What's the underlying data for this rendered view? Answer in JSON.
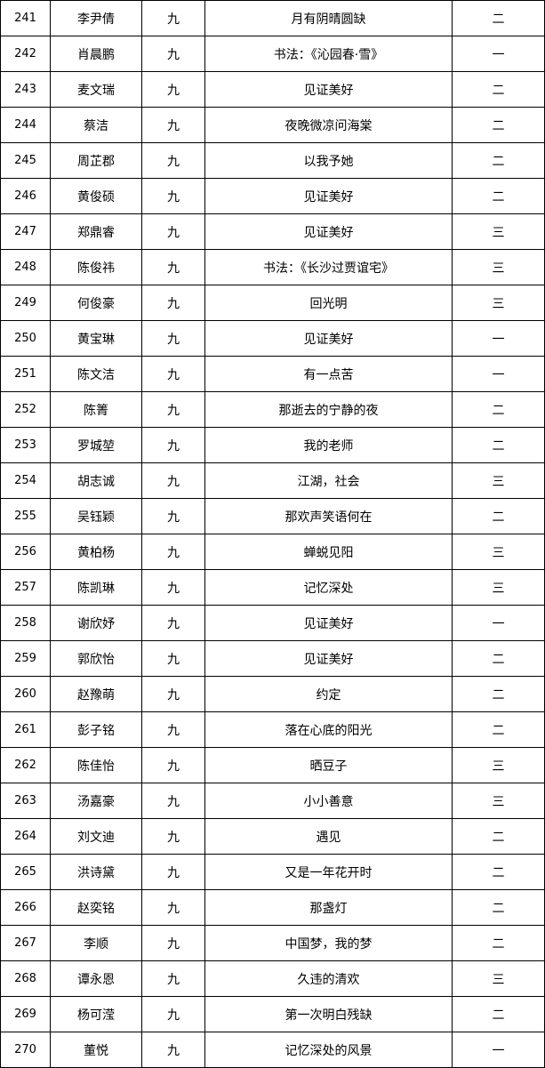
{
  "table": {
    "rows": [
      {
        "no": "241",
        "name": "李尹倩",
        "grade": "九",
        "title": "月有阴晴圆缺",
        "award": "二"
      },
      {
        "no": "242",
        "name": "肖晨鹏",
        "grade": "九",
        "title": "书法：《沁园春·雪》",
        "award": "一"
      },
      {
        "no": "243",
        "name": "麦文瑞",
        "grade": "九",
        "title": "见证美好",
        "award": "二"
      },
      {
        "no": "244",
        "name": "蔡洁",
        "grade": "九",
        "title": "夜晚微凉问海棠",
        "award": "二"
      },
      {
        "no": "245",
        "name": "周芷郡",
        "grade": "九",
        "title": "以我予她",
        "award": "二"
      },
      {
        "no": "246",
        "name": "黄俊硕",
        "grade": "九",
        "title": "见证美好",
        "award": "二"
      },
      {
        "no": "247",
        "name": "郑鼎睿",
        "grade": "九",
        "title": "见证美好",
        "award": "三"
      },
      {
        "no": "248",
        "name": "陈俊祎",
        "grade": "九",
        "title": "书法：《长沙过贾谊宅》",
        "award": "三"
      },
      {
        "no": "249",
        "name": "何俊豪",
        "grade": "九",
        "title": "回光明",
        "award": "三"
      },
      {
        "no": "250",
        "name": "黄宝琳",
        "grade": "九",
        "title": "见证美好",
        "award": "一"
      },
      {
        "no": "251",
        "name": "陈文洁",
        "grade": "九",
        "title": "有一点苦",
        "award": "一"
      },
      {
        "no": "252",
        "name": "陈箐",
        "grade": "九",
        "title": "那逝去的宁静的夜",
        "award": "二"
      },
      {
        "no": "253",
        "name": "罗城堃",
        "grade": "九",
        "title": "我的老师",
        "award": "二"
      },
      {
        "no": "254",
        "name": "胡志诚",
        "grade": "九",
        "title": "江湖，社会",
        "award": "三"
      },
      {
        "no": "255",
        "name": "吴钰颖",
        "grade": "九",
        "title": "那欢声笑语何在",
        "award": "二"
      },
      {
        "no": "256",
        "name": "黄柏杨",
        "grade": "九",
        "title": "蝉蜕见阳",
        "award": "三"
      },
      {
        "no": "257",
        "name": "陈凯琳",
        "grade": "九",
        "title": "记忆深处",
        "award": "三"
      },
      {
        "no": "258",
        "name": "谢欣妤",
        "grade": "九",
        "title": "见证美好",
        "award": "一"
      },
      {
        "no": "259",
        "name": "郭欣怡",
        "grade": "九",
        "title": "见证美好",
        "award": "二"
      },
      {
        "no": "260",
        "name": "赵豫萌",
        "grade": "九",
        "title": "约定",
        "award": "二"
      },
      {
        "no": "261",
        "name": "彭子铭",
        "grade": "九",
        "title": "落在心底的阳光",
        "award": "二"
      },
      {
        "no": "262",
        "name": "陈佳怡",
        "grade": "九",
        "title": "晒豆子",
        "award": "三"
      },
      {
        "no": "263",
        "name": "汤嘉豪",
        "grade": "九",
        "title": "小小善意",
        "award": "三"
      },
      {
        "no": "264",
        "name": "刘文迪",
        "grade": "九",
        "title": "遇见",
        "award": "二"
      },
      {
        "no": "265",
        "name": "洪诗黛",
        "grade": "九",
        "title": "又是一年花开时",
        "award": "二"
      },
      {
        "no": "266",
        "name": "赵奕铭",
        "grade": "九",
        "title": "那盏灯",
        "award": "二"
      },
      {
        "no": "267",
        "name": "李顺",
        "grade": "九",
        "title": "中国梦，我的梦",
        "award": "二"
      },
      {
        "no": "268",
        "name": "谭永恩",
        "grade": "九",
        "title": "久违的清欢",
        "award": "三"
      },
      {
        "no": "269",
        "name": "杨可滢",
        "grade": "九",
        "title": "第一次明白残缺",
        "award": "二"
      },
      {
        "no": "270",
        "name": "董悦",
        "grade": "九",
        "title": "记忆深处的风景",
        "award": "一"
      }
    ]
  }
}
